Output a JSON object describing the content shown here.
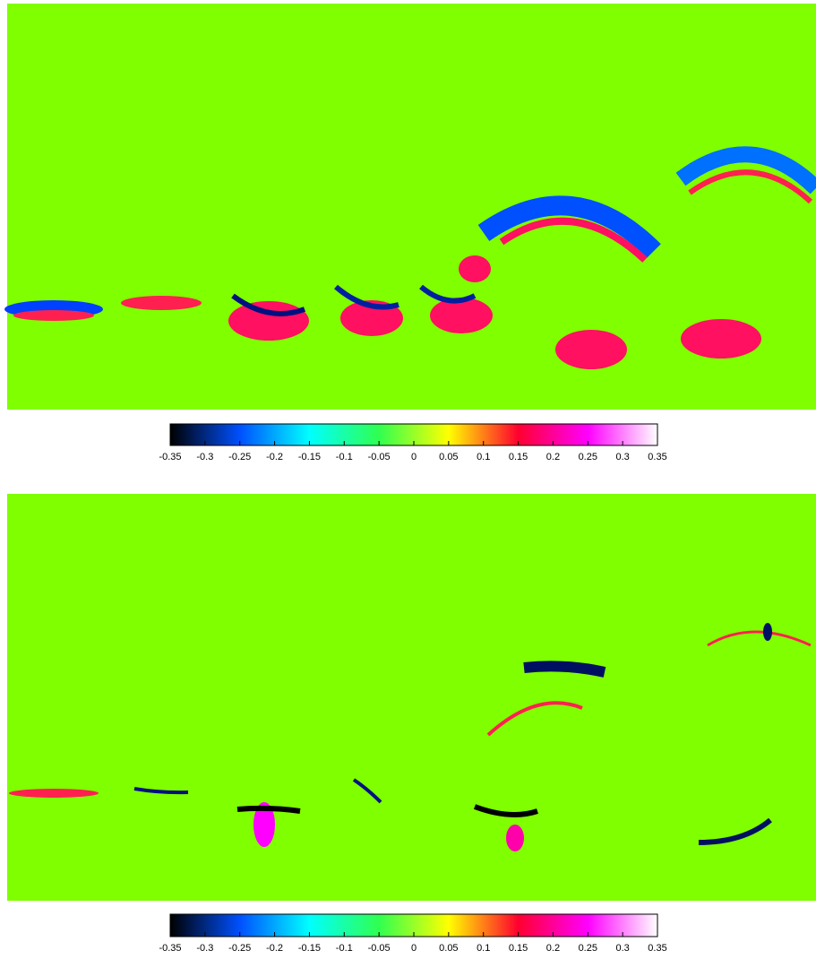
{
  "chart_data": [
    {
      "type": "heatmap",
      "background_color": "#7fff00",
      "colorscale": [
        "#000000",
        "#0050ff",
        "#00ffff",
        "#30ff50",
        "#ffff00",
        "#ff0030",
        "#ff00ff",
        "#ffffff"
      ],
      "clim": [
        -0.35,
        0.35
      ],
      "cticks": [
        -0.35,
        -0.3,
        -0.25,
        -0.2,
        -0.15,
        -0.1,
        -0.05,
        0,
        0.05,
        0.1,
        0.15,
        0.2,
        0.25,
        0.3,
        0.35
      ]
    },
    {
      "type": "heatmap",
      "background_color": "#7fff00",
      "colorscale": [
        "#000000",
        "#0050ff",
        "#00ffff",
        "#30ff50",
        "#ffff00",
        "#ff0030",
        "#ff00ff",
        "#ffffff"
      ],
      "clim": [
        -0.35,
        0.35
      ],
      "cticks": [
        -0.35,
        -0.3,
        -0.25,
        -0.2,
        -0.15,
        -0.1,
        -0.05,
        0,
        0.05,
        0.1,
        0.15,
        0.2,
        0.25,
        0.3,
        0.35
      ]
    }
  ]
}
